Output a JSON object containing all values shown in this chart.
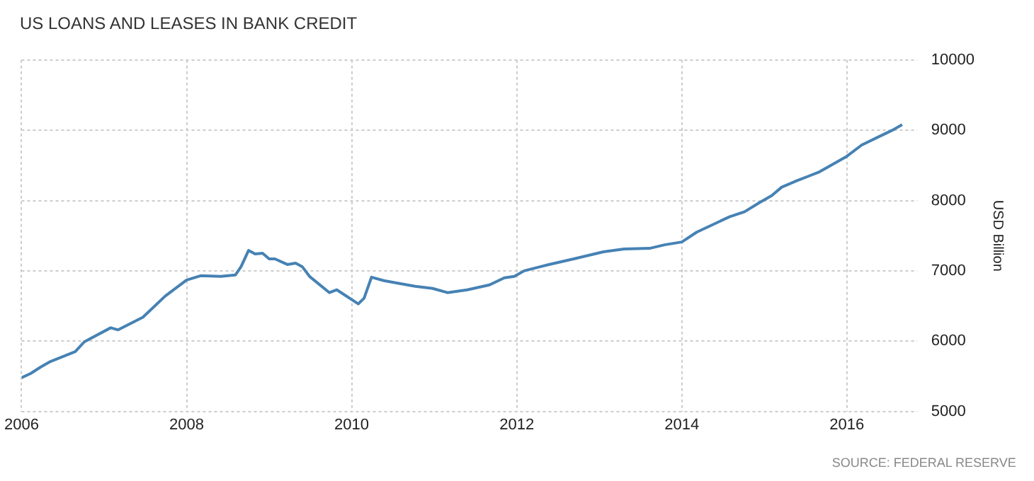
{
  "chart_data": {
    "type": "line",
    "title": "US LOANS AND LEASES IN BANK CREDIT",
    "ylabel": "USD Billion",
    "annotations": [
      "SOURCE: FEDERAL RESERVE"
    ],
    "xlim": [
      2006,
      2016.85
    ],
    "xticks": [
      2006,
      2008,
      2010,
      2012,
      2014,
      2016
    ],
    "ylim": [
      5000,
      10000
    ],
    "yticks": [
      5000,
      6000,
      7000,
      8000,
      9000,
      10000
    ],
    "grid": true,
    "series": [
      {
        "color": "#4682b4",
        "x": [
          2006.0,
          2006.11,
          2006.23,
          2006.35,
          2006.65,
          2006.76,
          2007.08,
          2007.17,
          2007.47,
          2007.74,
          2008.0,
          2008.17,
          2008.41,
          2008.59,
          2008.66,
          2008.75,
          2008.83,
          2008.92,
          2009.0,
          2009.07,
          2009.22,
          2009.32,
          2009.4,
          2009.49,
          2009.73,
          2009.82,
          2010.08,
          2010.15,
          2010.24,
          2010.39,
          2010.53,
          2010.77,
          2010.98,
          2011.16,
          2011.4,
          2011.67,
          2011.85,
          2011.97,
          2012.09,
          2012.39,
          2012.69,
          2013.05,
          2013.3,
          2013.61,
          2013.79,
          2014.0,
          2014.18,
          2014.58,
          2014.76,
          2014.94,
          2015.09,
          2015.21,
          2015.39,
          2015.52,
          2015.67,
          2016.0,
          2016.18,
          2016.39,
          2016.55,
          2016.67
        ],
        "values": [
          5480,
          5540,
          5630,
          5710,
          5850,
          5990,
          6190,
          6160,
          6340,
          6640,
          6870,
          6930,
          6920,
          6940,
          7060,
          7290,
          7240,
          7250,
          7170,
          7170,
          7090,
          7110,
          7060,
          6920,
          6690,
          6730,
          6530,
          6610,
          6910,
          6860,
          6830,
          6780,
          6750,
          6690,
          6730,
          6800,
          6900,
          6920,
          7000,
          7090,
          7170,
          7270,
          7310,
          7320,
          7370,
          7410,
          7550,
          7770,
          7840,
          7970,
          8070,
          8190,
          8280,
          8340,
          8410,
          8630,
          8790,
          8910,
          9000,
          9080
        ]
      }
    ]
  }
}
